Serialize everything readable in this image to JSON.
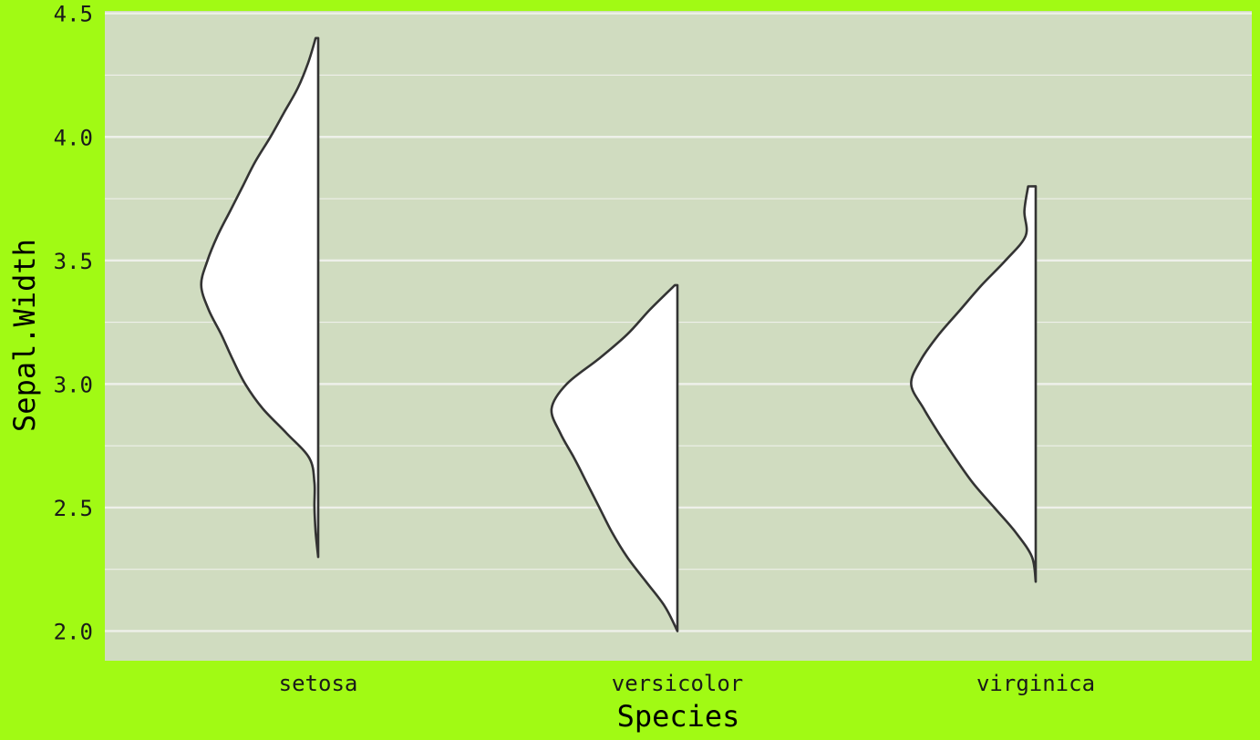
{
  "chart_data": {
    "type": "violin",
    "title": "",
    "xlabel": "Species",
    "ylabel": "Sepal.Width",
    "categories": [
      "setosa",
      "versicolor",
      "virginica"
    ],
    "ylim": [
      1.88,
      4.51
    ],
    "yticks": [
      "2.0",
      "2.5",
      "3.0",
      "3.5",
      "4.0",
      "4.5"
    ],
    "ytick_values": [
      2.0,
      2.5,
      3.0,
      3.5,
      4.0,
      4.5
    ],
    "grid": true,
    "legend": "none",
    "style": "half-violin (left side)",
    "colors": {
      "background": "#a1fa14",
      "panel": "#d0dcc0",
      "grid": "#eef0ea",
      "violin_fill": "#ffffff",
      "violin_stroke": "#333333"
    },
    "series": [
      {
        "category": "setosa",
        "range": [
          2.3,
          4.4
        ],
        "profile": [
          [
            2.3,
            0.0
          ],
          [
            2.4,
            0.02
          ],
          [
            2.5,
            0.03
          ],
          [
            2.6,
            0.03
          ],
          [
            2.7,
            0.07
          ],
          [
            2.8,
            0.25
          ],
          [
            2.9,
            0.44
          ],
          [
            3.0,
            0.58
          ],
          [
            3.1,
            0.68
          ],
          [
            3.2,
            0.77
          ],
          [
            3.3,
            0.87
          ],
          [
            3.4,
            0.93
          ],
          [
            3.5,
            0.88
          ],
          [
            3.6,
            0.8
          ],
          [
            3.7,
            0.7
          ],
          [
            3.8,
            0.6
          ],
          [
            3.9,
            0.5
          ],
          [
            4.0,
            0.38
          ],
          [
            4.1,
            0.27
          ],
          [
            4.2,
            0.16
          ],
          [
            4.3,
            0.08
          ],
          [
            4.4,
            0.02
          ]
        ]
      },
      {
        "category": "versicolor",
        "range": [
          2.0,
          3.4
        ],
        "profile": [
          [
            2.0,
            0.0
          ],
          [
            2.1,
            0.1
          ],
          [
            2.2,
            0.25
          ],
          [
            2.3,
            0.4
          ],
          [
            2.4,
            0.52
          ],
          [
            2.5,
            0.62
          ],
          [
            2.6,
            0.72
          ],
          [
            2.7,
            0.82
          ],
          [
            2.8,
            0.93
          ],
          [
            2.9,
            1.0
          ],
          [
            3.0,
            0.88
          ],
          [
            3.1,
            0.63
          ],
          [
            3.2,
            0.4
          ],
          [
            3.3,
            0.22
          ],
          [
            3.4,
            0.02
          ]
        ]
      },
      {
        "category": "virginica",
        "range": [
          2.2,
          3.8
        ],
        "profile": [
          [
            2.2,
            0.0
          ],
          [
            2.3,
            0.03
          ],
          [
            2.4,
            0.16
          ],
          [
            2.5,
            0.33
          ],
          [
            2.6,
            0.5
          ],
          [
            2.7,
            0.64
          ],
          [
            2.8,
            0.77
          ],
          [
            2.9,
            0.89
          ],
          [
            3.0,
            0.99
          ],
          [
            3.1,
            0.91
          ],
          [
            3.2,
            0.77
          ],
          [
            3.3,
            0.6
          ],
          [
            3.4,
            0.43
          ],
          [
            3.5,
            0.24
          ],
          [
            3.6,
            0.08
          ],
          [
            3.7,
            0.09
          ],
          [
            3.8,
            0.06
          ]
        ]
      }
    ]
  }
}
